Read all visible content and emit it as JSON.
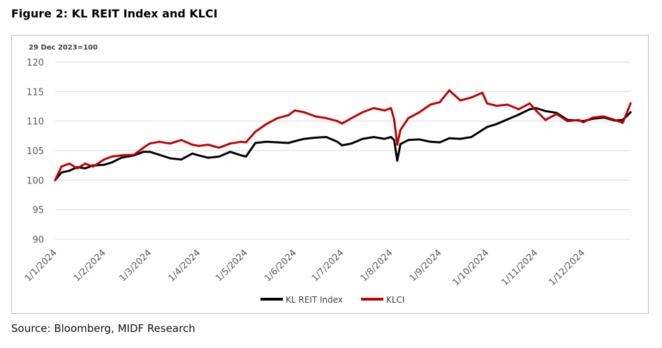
{
  "figure_title": "Figure 2: KL REIT Index and KLCI",
  "source": "Source: Bloomberg, MIDF Research",
  "colors": {
    "reit": "#000000",
    "klci": "#c00000",
    "grid": "#d9d9d9",
    "axis_text": "#595959"
  },
  "chart_data": {
    "type": "line",
    "note": "29 Dec 2023=100",
    "xlabel": "",
    "ylabel": "",
    "ylim": [
      90,
      120
    ],
    "yticks": [
      90,
      95,
      100,
      105,
      110,
      115,
      120
    ],
    "grid": true,
    "legend": "bottom-center",
    "x_tick_labels": [
      "1/1/2024",
      "1/2/2024",
      "1/3/2024",
      "1/4/2024",
      "1/5/2024",
      "1/6/2024",
      "1/7/2024",
      "1/8/2024",
      "1/9/2024",
      "1/10/2024",
      "1/11/2024",
      "1/12/2024"
    ],
    "x": [
      "2024-01-01",
      "2024-01-05",
      "2024-01-10",
      "2024-01-15",
      "2024-01-20",
      "2024-01-25",
      "2024-02-01",
      "2024-02-06",
      "2024-02-12",
      "2024-02-20",
      "2024-02-26",
      "2024-03-01",
      "2024-03-07",
      "2024-03-14",
      "2024-03-21",
      "2024-03-28",
      "2024-04-01",
      "2024-04-07",
      "2024-04-14",
      "2024-04-21",
      "2024-04-28",
      "2024-05-01",
      "2024-05-07",
      "2024-05-14",
      "2024-05-21",
      "2024-05-28",
      "2024-06-01",
      "2024-06-07",
      "2024-06-14",
      "2024-06-21",
      "2024-06-28",
      "2024-07-01",
      "2024-07-07",
      "2024-07-14",
      "2024-07-21",
      "2024-07-28",
      "2024-08-01",
      "2024-08-03",
      "2024-08-05",
      "2024-08-07",
      "2024-08-12",
      "2024-08-19",
      "2024-08-26",
      "2024-09-01",
      "2024-09-07",
      "2024-09-14",
      "2024-09-21",
      "2024-09-28",
      "2024-10-01",
      "2024-10-07",
      "2024-10-14",
      "2024-10-21",
      "2024-10-28",
      "2024-11-01",
      "2024-11-07",
      "2024-11-14",
      "2024-11-21",
      "2024-11-28",
      "2024-12-01",
      "2024-12-07",
      "2024-12-14",
      "2024-12-21",
      "2024-12-26",
      "2024-12-31"
    ],
    "series": [
      {
        "name": "KL REIT Index",
        "values": [
          100,
          101.3,
          101.6,
          102.2,
          102.0,
          102.5,
          102.6,
          103.0,
          103.8,
          104.2,
          104.8,
          104.8,
          104.3,
          103.7,
          103.5,
          104.5,
          104.2,
          103.8,
          104.0,
          104.8,
          104.2,
          104.0,
          106.3,
          106.5,
          106.4,
          106.3,
          106.6,
          107.0,
          107.2,
          107.3,
          106.5,
          105.9,
          106.2,
          107.0,
          107.3,
          107.0,
          107.3,
          106.8,
          103.3,
          106.1,
          106.8,
          106.9,
          106.5,
          106.4,
          107.1,
          107.0,
          107.3,
          108.5,
          109.0,
          109.5,
          110.3,
          111.1,
          112.0,
          112.2,
          111.7,
          111.4,
          110.2,
          110.1,
          110.0,
          110.4,
          110.6,
          110.1,
          110.2,
          111.5
        ]
      },
      {
        "name": "KLCI",
        "values": [
          100,
          102.3,
          102.8,
          102.0,
          102.8,
          102.3,
          103.5,
          104.0,
          104.2,
          104.3,
          105.5,
          106.2,
          106.5,
          106.2,
          106.8,
          106.0,
          105.8,
          106.0,
          105.5,
          106.2,
          106.5,
          106.4,
          108.2,
          109.5,
          110.5,
          111.0,
          111.8,
          111.5,
          110.8,
          110.5,
          110.0,
          109.6,
          110.5,
          111.5,
          112.2,
          111.8,
          112.2,
          110.3,
          106.0,
          108.5,
          110.5,
          111.5,
          112.8,
          113.2,
          115.2,
          113.5,
          114.0,
          114.8,
          113.0,
          112.6,
          112.8,
          112.0,
          113.0,
          111.8,
          110.2,
          111.2,
          110.0,
          110.2,
          109.8,
          110.6,
          110.8,
          110.2,
          109.7,
          113.0
        ]
      }
    ]
  }
}
